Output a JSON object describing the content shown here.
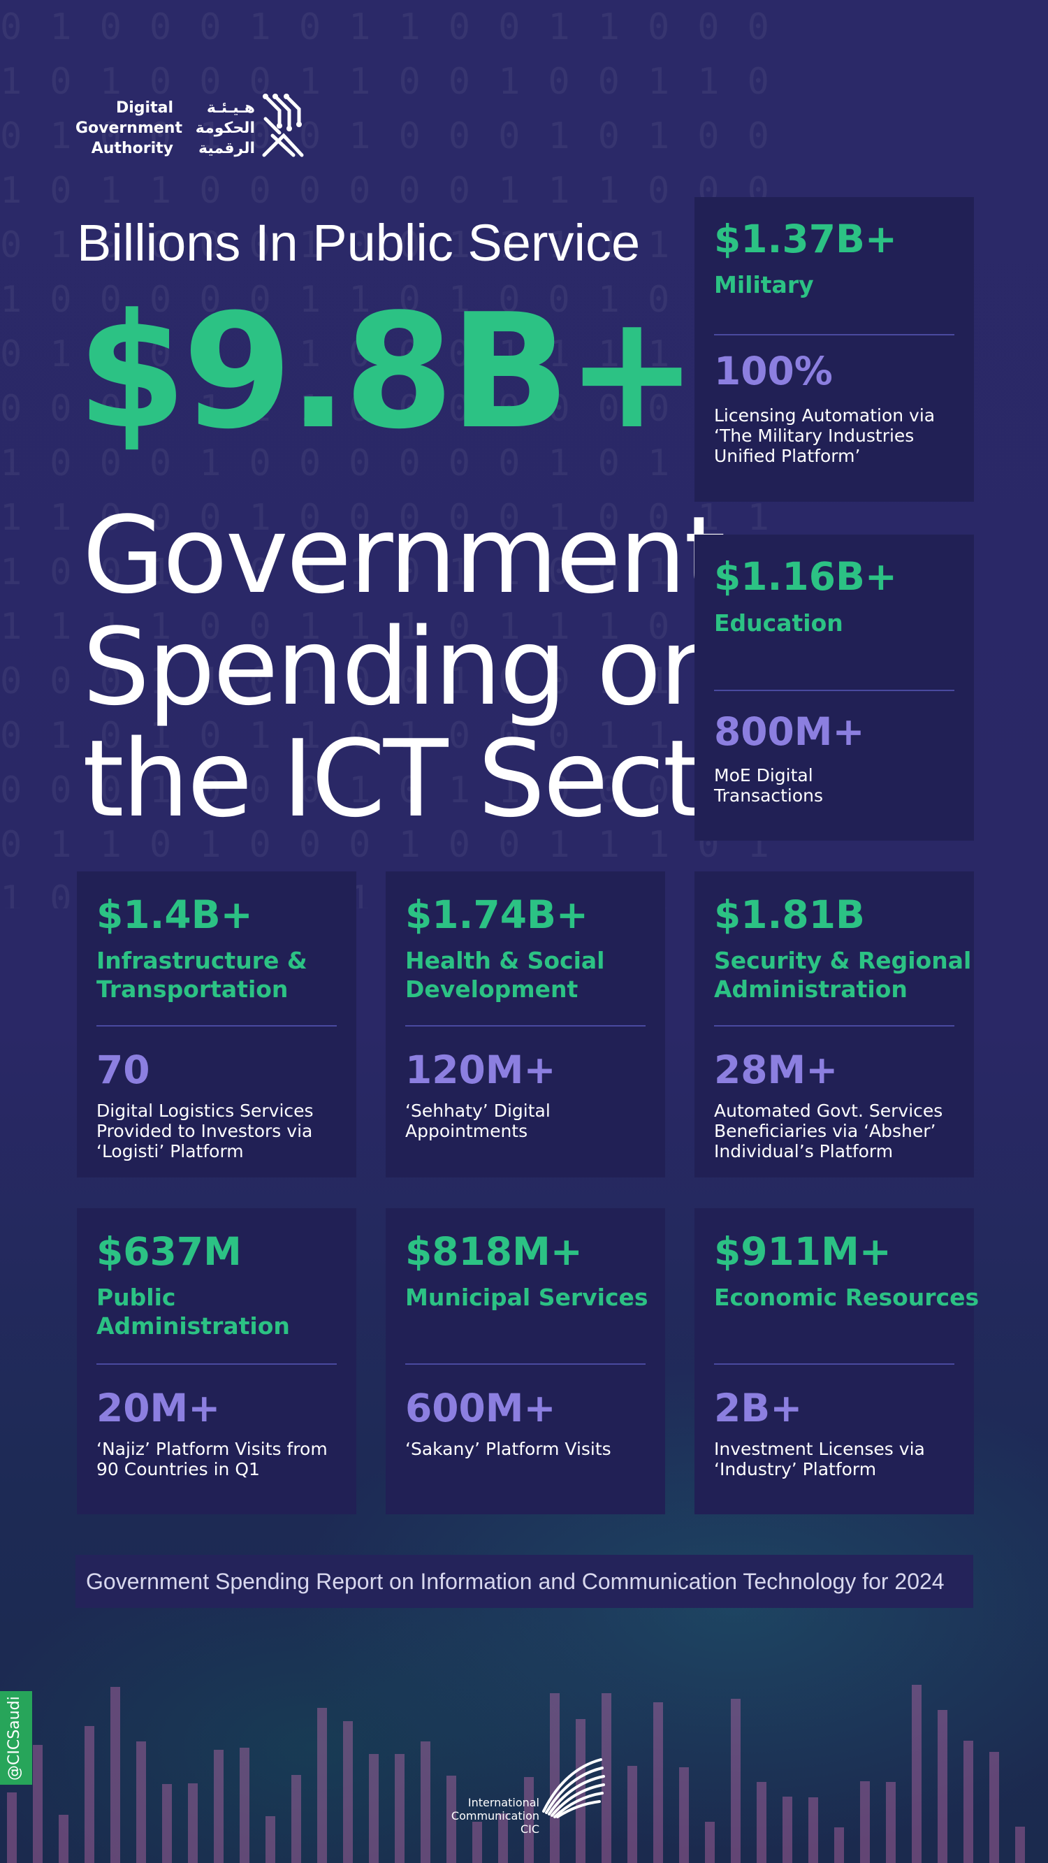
{
  "logo": {
    "en": [
      "Digital",
      "Government",
      "Authority"
    ],
    "ar": [
      "هـيـئـة",
      "الحكومة",
      "الرقمية"
    ]
  },
  "hero": {
    "kicker": "Billions In Public Service",
    "total": "$9.8B+",
    "headline": [
      "Government",
      "Spending on",
      "the ICT Sector"
    ]
  },
  "sectors": [
    {
      "amount": "$1.37B+",
      "category": [
        "Military"
      ],
      "stat": "100%",
      "desc": [
        "Licensing Automation via",
        "‘The Military Industries",
        "Unified Platform’"
      ]
    },
    {
      "amount": "$1.16B+",
      "category": [
        "Education"
      ],
      "stat": "800M+",
      "desc": [
        "MoE Digital",
        "Transactions"
      ]
    },
    {
      "amount": "$1.4B+",
      "category": [
        "Infrastructure &",
        "Transportation"
      ],
      "stat": "70",
      "desc": [
        "Digital Logistics Services",
        "Provided to Investors via",
        "‘Logisti’ Platform"
      ]
    },
    {
      "amount": "$1.74B+",
      "category": [
        "Health & Social",
        "Development"
      ],
      "stat": "120M+",
      "desc": [
        "‘Sehhaty’ Digital",
        "Appointments"
      ]
    },
    {
      "amount": "$1.81B",
      "category": [
        "Security & Regional",
        "Administration"
      ],
      "stat": "28M+",
      "desc": [
        "Automated Govt. Services",
        "Beneficiaries via ‘Absher’",
        "Individual’s Platform"
      ]
    },
    {
      "amount": "$637M",
      "category": [
        "Public",
        "Administration"
      ],
      "stat": "20M+",
      "desc": [
        "‘Najiz’ Platform Visits from",
        "90 Countries in Q1"
      ]
    },
    {
      "amount": "$818M+",
      "category": [
        "Municipal Services"
      ],
      "stat": "600M+",
      "desc": [
        "‘Sakany’ Platform Visits"
      ]
    },
    {
      "amount": "$911M+",
      "category": [
        "Economic Resources"
      ],
      "stat": "2B+",
      "desc": [
        "Investment Licenses via",
        "‘Industry’ Platform"
      ]
    }
  ],
  "footer": {
    "report": "Government Spending Report on Information and Communication Technology for 2024",
    "handle": "@CICSaudi",
    "cic": [
      "International",
      "Communication",
      "CIC"
    ]
  },
  "colors": {
    "background": "#2a2767",
    "card": "#212055",
    "green": "#2cc284",
    "purple": "#8c7fe0"
  },
  "icons": {
    "dga": "dga-circuit-logo-icon",
    "cic": "cic-burst-logo-icon"
  }
}
